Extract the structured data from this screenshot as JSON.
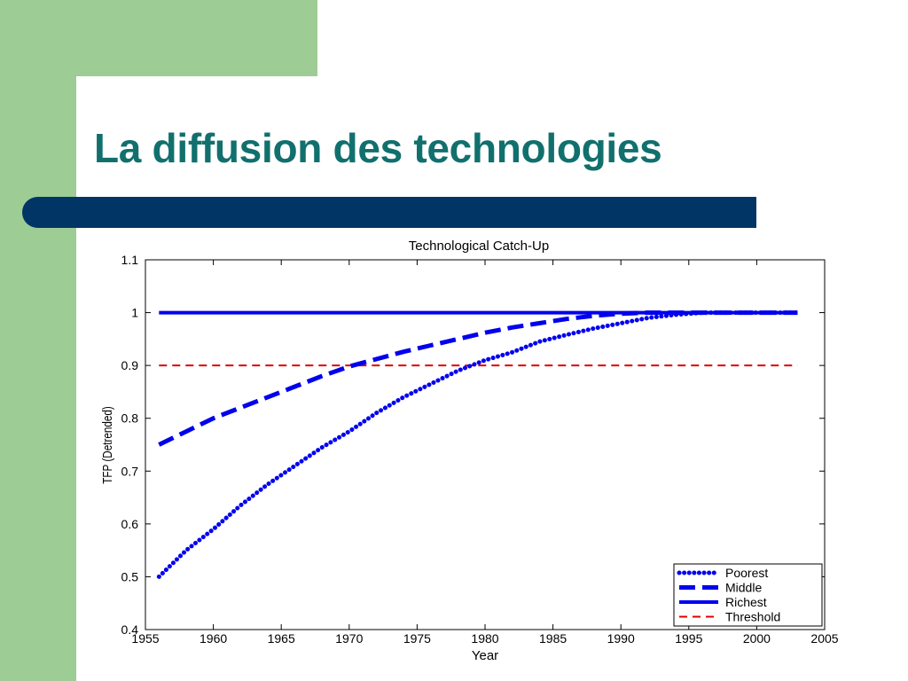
{
  "slide": {
    "title": "La diffusion des technologies"
  },
  "colors": {
    "green_decoration": "#9dcc95",
    "title_text": "#11706e",
    "title_bar": "#003566",
    "series_blue": "#0000ee",
    "threshold_red": "#dd0000"
  },
  "chart_data": {
    "type": "line",
    "title": "Technological Catch-Up",
    "xlabel": "Year",
    "ylabel": "TFP (Detrended)",
    "xlim": [
      1955,
      2005
    ],
    "ylim": [
      0.4,
      1.1
    ],
    "xticks": [
      "1955",
      "1960",
      "1965",
      "1970",
      "1975",
      "1980",
      "1985",
      "1990",
      "1995",
      "2000",
      "2005"
    ],
    "yticks": [
      "0.4",
      "0.5",
      "0.6",
      "0.7",
      "0.8",
      "0.9",
      "1",
      "1.1"
    ],
    "grid": false,
    "legend_position": "bottom-right",
    "x": [
      1956,
      1958,
      1960,
      1962,
      1964,
      1966,
      1968,
      1970,
      1972,
      1974,
      1976,
      1978,
      1980,
      1982,
      1984,
      1986,
      1988,
      1990,
      1992,
      1994,
      1996,
      1998,
      2000,
      2003
    ],
    "series": [
      {
        "name": "Poorest",
        "style": "dotted",
        "values": [
          0.5,
          0.55,
          0.59,
          0.635,
          0.675,
          0.71,
          0.745,
          0.775,
          0.81,
          0.84,
          0.865,
          0.89,
          0.91,
          0.925,
          0.945,
          0.958,
          0.97,
          0.98,
          0.99,
          0.996,
          1.0,
          1.0,
          1.0,
          1.0
        ]
      },
      {
        "name": "Middle",
        "style": "dashed",
        "values": [
          0.75,
          0.775,
          0.8,
          0.82,
          0.84,
          0.86,
          0.88,
          0.898,
          0.912,
          0.926,
          0.938,
          0.95,
          0.962,
          0.972,
          0.98,
          0.988,
          0.994,
          0.998,
          1.0,
          1.0,
          1.0,
          1.0,
          1.0,
          1.0
        ]
      },
      {
        "name": "Richest",
        "style": "solid",
        "values": [
          1,
          1,
          1,
          1,
          1,
          1,
          1,
          1,
          1,
          1,
          1,
          1,
          1,
          1,
          1,
          1,
          1,
          1,
          1,
          1,
          1,
          1,
          1,
          1
        ]
      },
      {
        "name": "Threshold",
        "style": "dashed-red",
        "values": [
          0.9,
          0.9,
          0.9,
          0.9,
          0.9,
          0.9,
          0.9,
          0.9,
          0.9,
          0.9,
          0.9,
          0.9,
          0.9,
          0.9,
          0.9,
          0.9,
          0.9,
          0.9,
          0.9,
          0.9,
          0.9,
          0.9,
          0.9,
          0.9
        ]
      }
    ]
  }
}
